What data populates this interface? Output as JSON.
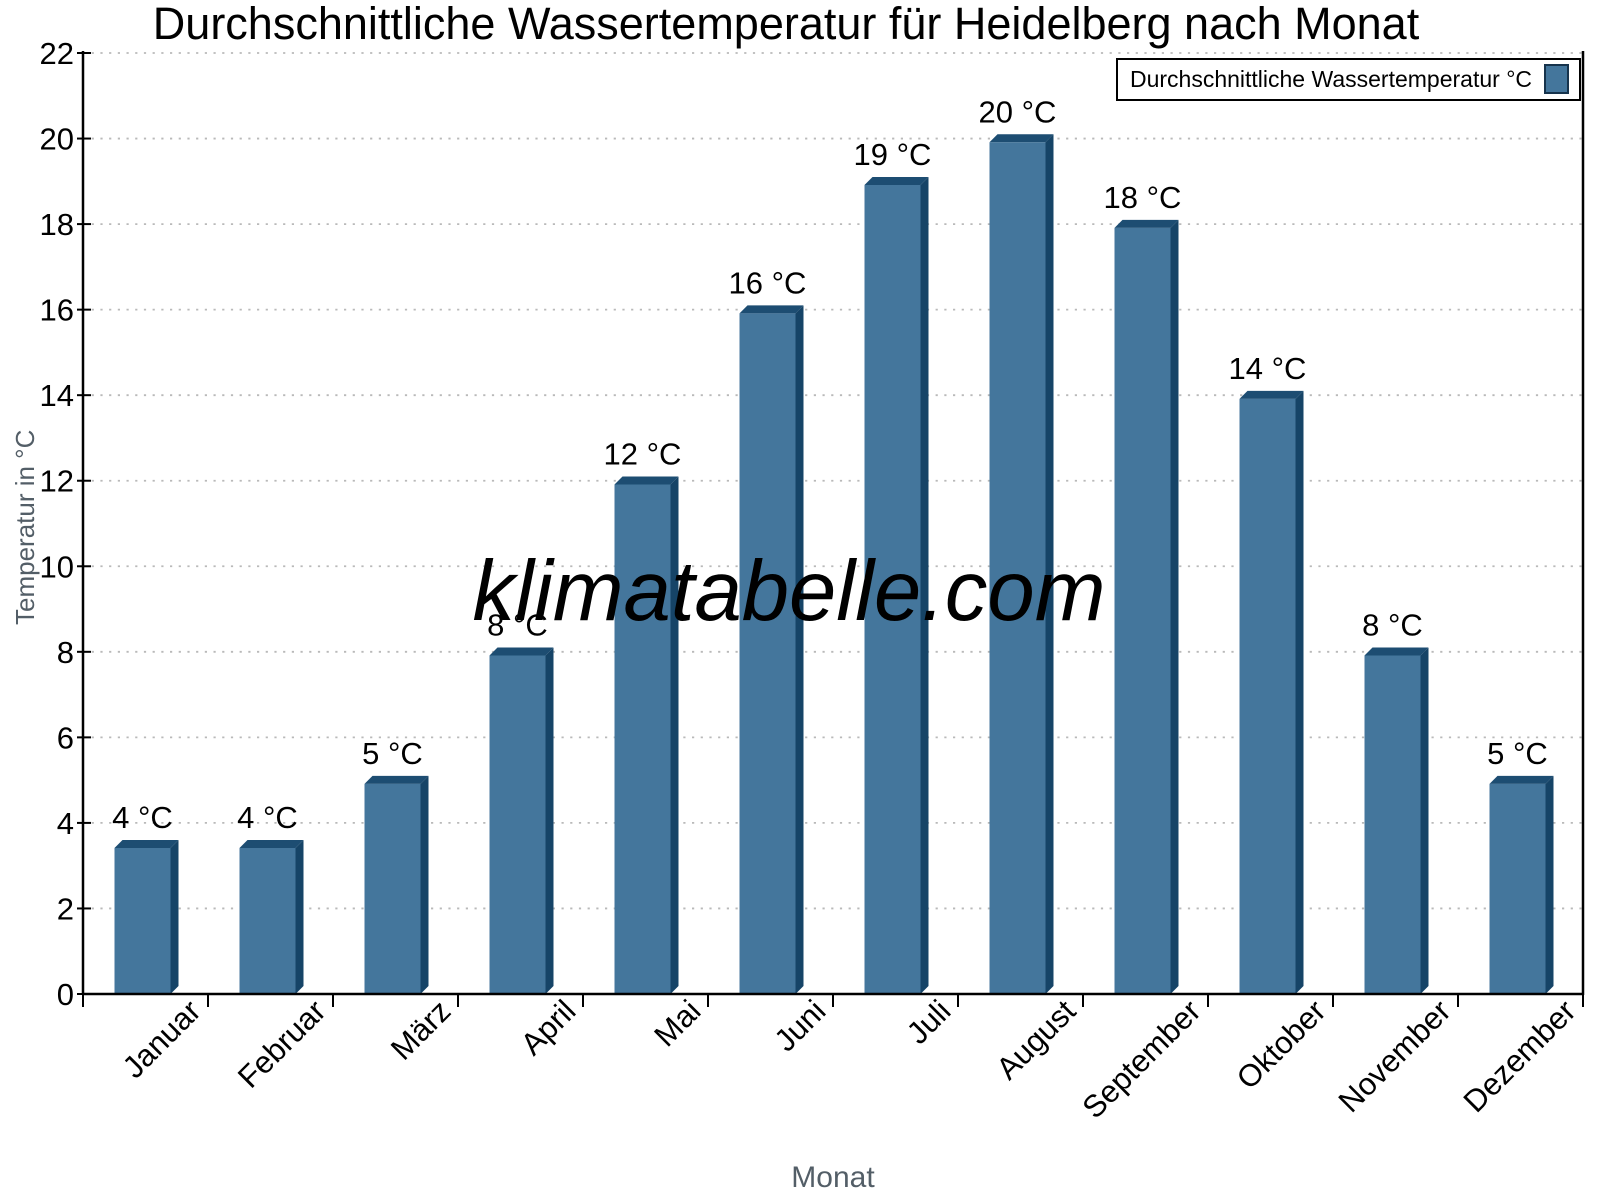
{
  "watermark": {
    "text": "klimatabelle.com"
  },
  "chart_data": {
    "type": "bar",
    "title": "Durchschnittliche Wassertemperatur für Heidelberg nach Monat",
    "categories": [
      "Januar",
      "Februar",
      "März",
      "April",
      "Mai",
      "Juni",
      "Juli",
      "August",
      "September",
      "Oktober",
      "November",
      "Dezember"
    ],
    "series": [
      {
        "name": "Durchschnittliche Wassertemperatur °C",
        "values": [
          3.6,
          3.6,
          5.1,
          8.1,
          12.1,
          16.1,
          19.1,
          20.1,
          18.1,
          14.1,
          8.1,
          5.1
        ],
        "value_labels": [
          "4 °C",
          "4 °C",
          "5 °C",
          "8 °C",
          "12 °C",
          "16 °C",
          "19 °C",
          "20 °C",
          "18 °C",
          "14 °C",
          "8 °C",
          "5 °C"
        ]
      }
    ],
    "xlabel": "Monat",
    "ylabel": "Temperatur in °C",
    "ylim": [
      0,
      22
    ],
    "ytick_step": 2,
    "y_tick_labels": [
      "0",
      "2",
      "4",
      "6",
      "8",
      "10",
      "12",
      "14",
      "16",
      "18",
      "20",
      "22"
    ],
    "grid": "horizontal-dotted",
    "legend_position": "top-right",
    "bar_style": "3d",
    "colors": {
      "bar_face": "#44769c",
      "bar_top": "#1d4d72",
      "bar_side": "#164467",
      "grid": "#b9b9b9",
      "axis": "#000000",
      "axis_title": "#535e67",
      "tick_label": "#000000",
      "watermark": "rgba(130,130,130,0.42)",
      "legend_swatch_border": "#16334c"
    }
  }
}
